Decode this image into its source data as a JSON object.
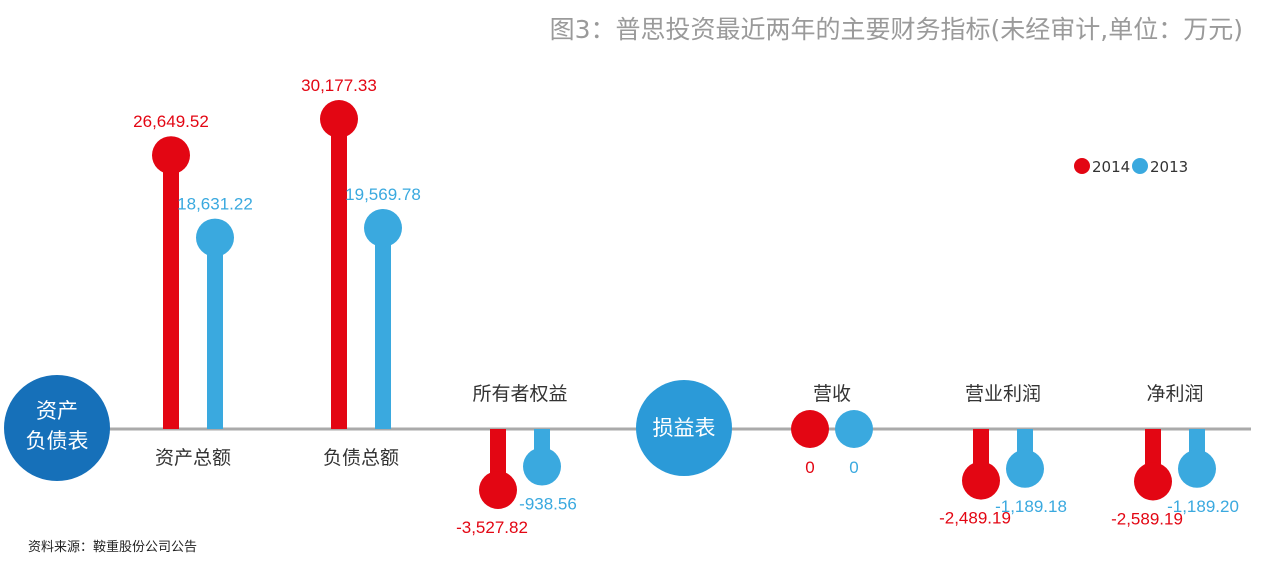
{
  "title": "图3：普思投资最近两年的主要财务指标(未经审计,单位：万元)",
  "source": "资料来源：鞍重股份公司公告",
  "colors": {
    "2014": "#e30613",
    "2013": "#3aa9df",
    "balance_circle": "#1670b9",
    "income_circle": "#2b9ad8",
    "axis": "#aaaaaa"
  },
  "legend": [
    {
      "label": "2014",
      "color": "#e30613"
    },
    {
      "label": "2013",
      "color": "#3aa9df"
    }
  ],
  "section_labels": {
    "balance_sheet": [
      "资产",
      "负债表"
    ],
    "income_statement": "损益表"
  },
  "chart_data": {
    "type": "bar",
    "title": "图3：普思投资最近两年的主要财务指标(未经审计,单位：万元)",
    "unit": "万元",
    "categories": [
      "资产总额",
      "负债总额",
      "所有者权益",
      "营收",
      "营业利润",
      "净利润"
    ],
    "groups": {
      "资产负债表": [
        "资产总额",
        "负债总额",
        "所有者权益"
      ],
      "损益表": [
        "营收",
        "营业利润",
        "净利润"
      ]
    },
    "series": [
      {
        "name": "2014",
        "values": [
          26649.52,
          30177.33,
          -3527.82,
          0,
          -2489.19,
          -2589.19
        ]
      },
      {
        "name": "2013",
        "values": [
          18631.22,
          19569.78,
          -938.56,
          0,
          -1189.18,
          -1189.2
        ]
      }
    ],
    "value_labels": {
      "2014": [
        "26,649.52",
        "30,177.33",
        "-3,527.82",
        "0",
        "-2,489.19",
        "-2,589.19"
      ],
      "2013": [
        "18,631.22",
        "19,569.78",
        "-938.56",
        "0",
        "-1,189.18",
        "-1,189.20"
      ]
    },
    "legend_position": "top-right",
    "grid": false
  }
}
